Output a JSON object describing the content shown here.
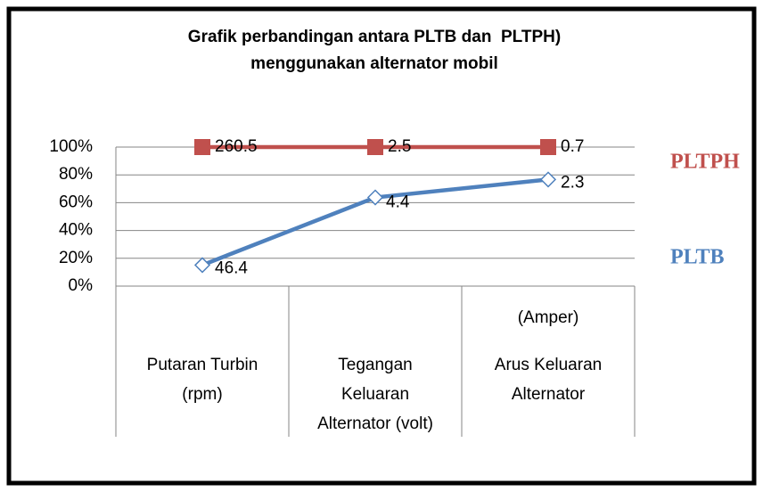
{
  "chart_data": {
    "type": "line",
    "stacking": "percent",
    "title": [
      "Grafik perbandingan antara PLTB dan  PLTPH)",
      "menggunakan alternator mobil"
    ],
    "categories": [
      [
        "Putaran Turbin",
        "(rpm)"
      ],
      [
        "Tegangan",
        "Keluaran",
        "Alternator (volt)"
      ],
      [
        "(Amper)",
        "Arus Keluaran",
        "Alternator"
      ]
    ],
    "series": [
      {
        "name": "PLTB",
        "color": "#4f81bd",
        "marker": "diamond",
        "values": [
          46.4,
          4.4,
          2.3
        ]
      },
      {
        "name": "PLTPH",
        "color": "#c0504d",
        "marker": "square",
        "values": [
          260.5,
          2.5,
          0.7
        ]
      }
    ],
    "ylim": [
      0,
      100
    ],
    "yticks": [
      {
        "value": 0,
        "label": "0%"
      },
      {
        "value": 20,
        "label": "20%"
      },
      {
        "value": 40,
        "label": "40%"
      },
      {
        "value": 60,
        "label": "60%"
      },
      {
        "value": 80,
        "label": "80%"
      },
      {
        "value": 100,
        "label": "100%"
      }
    ],
    "grid": true,
    "legend": "right"
  }
}
